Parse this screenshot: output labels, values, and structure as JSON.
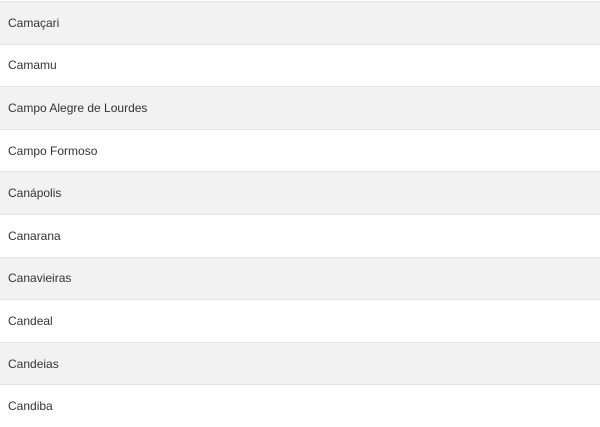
{
  "cities": [
    "Camaçari",
    "Camamu",
    "Campo Alegre de Lourdes",
    "Campo Formoso",
    "Canápolis",
    "Canarana",
    "Canavieiras",
    "Candeal",
    "Candeias",
    "Candiba"
  ],
  "colors": {
    "row_alt": "#f2f2f2",
    "row": "#ffffff",
    "text": "#333333"
  }
}
